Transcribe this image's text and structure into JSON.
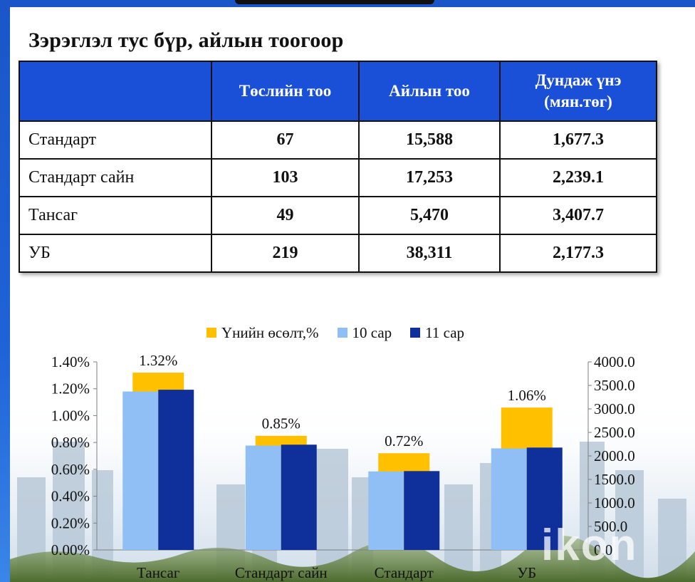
{
  "subtitle": "Зэрэглэл тус бүр, айлын тоогоор",
  "table": {
    "headers": [
      "",
      "Төслийн тоо",
      "Айлын тоо",
      "Дундаж үнэ (мян.төг)"
    ],
    "rows": [
      [
        "Стандарт",
        "67",
        "15,588",
        "1,677.3"
      ],
      [
        "Стандарт сайн",
        "103",
        "17,253",
        "2,239.1"
      ],
      [
        "Тансаг",
        "49",
        "5,470",
        "3,407.7"
      ],
      [
        "УБ",
        "219",
        "38,311",
        "2,177.3"
      ]
    ]
  },
  "watermark": "ikon",
  "chart_data": {
    "type": "bar",
    "categories": [
      "Тансаг",
      "Стандарт сайн",
      "Стандарт",
      "УБ"
    ],
    "series": [
      {
        "name": "Үнийн өсөлт,%",
        "axis": "left",
        "values": [
          1.32,
          0.85,
          0.72,
          1.06
        ],
        "data_labels": [
          "1.32%",
          "0.85%",
          "0.72%",
          "1.06%"
        ],
        "color": "#ffc000"
      },
      {
        "name": "10 сар",
        "axis": "right",
        "values": [
          3370,
          2220,
          1670,
          2160
        ],
        "color": "#8fbff5"
      },
      {
        "name": "11 сар",
        "axis": "right",
        "values": [
          3407.7,
          2239.1,
          1677.3,
          2177.3
        ],
        "color": "#0f2f9a"
      }
    ],
    "y_left": {
      "min": 0,
      "max": 1.4,
      "ticks": [
        "0.00%",
        "0.20%",
        "0.40%",
        "0.60%",
        "0.80%",
        "1.00%",
        "1.20%",
        "1.40%"
      ]
    },
    "y_right": {
      "min": 0,
      "max": 4000,
      "ticks": [
        "0.0",
        "500.0",
        "1000.0",
        "1500.0",
        "2000.0",
        "2500.0",
        "3000.0",
        "3500.0",
        "4000.0"
      ]
    },
    "legend_position": "top",
    "grid": false
  }
}
